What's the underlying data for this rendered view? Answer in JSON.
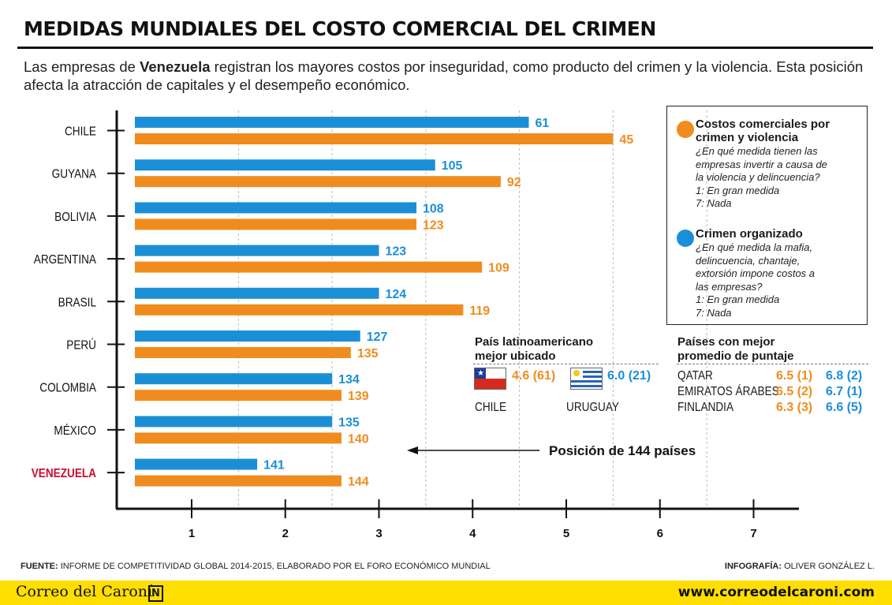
{
  "header": {
    "title": "MEDIDAS MUNDIALES DEL COSTO COMERCIAL DEL CRIMEN",
    "intro_pre": "Las empresas de ",
    "intro_bold": "Venezuela",
    "intro_post": " registran los mayores costos por inseguridad, como producto del crimen y la violencia. Esta posición afecta la atracción de capitales y el desempeño económico."
  },
  "colors": {
    "blue": "#1b8fd6",
    "orange": "#f08c1e",
    "highlight": "#c8102e"
  },
  "chart_data": {
    "type": "bar",
    "orientation": "horizontal",
    "categories": [
      "CHILE",
      "GUYANA",
      "BOLIVIA",
      "ARGENTINA",
      "BRASIL",
      "PERÚ",
      "COLOMBIA",
      "MÉXICO",
      "VENEZUELA"
    ],
    "highlight_category": "VENEZUELA",
    "series": [
      {
        "name": "Crimen organizado",
        "color": "#1b8fd6",
        "values": [
          4.6,
          3.6,
          3.4,
          3.0,
          3.0,
          2.8,
          2.5,
          2.5,
          1.7
        ],
        "labels": [
          "61",
          "105",
          "108",
          "123",
          "124",
          "127",
          "134",
          "135",
          "141"
        ]
      },
      {
        "name": "Costos comerciales por crimen y violencia",
        "color": "#f08c1e",
        "values": [
          5.5,
          4.3,
          3.4,
          4.1,
          3.9,
          2.7,
          2.6,
          2.6,
          2.6
        ],
        "labels": [
          "45",
          "92",
          "123",
          "109",
          "119",
          "135",
          "139",
          "140",
          "144"
        ]
      }
    ],
    "x_ticks": [
      "1",
      "2",
      "3",
      "4",
      "5",
      "6",
      "7"
    ],
    "xlim": [
      0.2,
      7.4
    ],
    "annotation": "Posición de 144 países"
  },
  "legend": {
    "orange_title": "Costos comerciales por crimen y violencia",
    "orange_desc": [
      "¿En qué medida tienen las",
      "empresas invertir a causa de",
      "la violencia y delincuencia?",
      "1: En gran medida",
      "7: Nada"
    ],
    "blue_title": "Crimen organizado",
    "blue_desc": [
      "¿En qué medida la mafia,",
      "delincuencia, chantaje,",
      "extorsión impone costos a",
      "las empresas?",
      "1: En gran medida",
      "7: Nada"
    ]
  },
  "best_latam": {
    "title_line1": "País latinoamericano",
    "title_line2": "mejor ubicado",
    "chile_value": "4.6 (61)",
    "chile_label": "CHILE",
    "uruguay_value": "6.0 (21)",
    "uruguay_label": "URUGUAY"
  },
  "best_world": {
    "title_line1": "Países con mejor",
    "title_line2": "promedio de puntaje",
    "rows": [
      {
        "country": "QATAR",
        "orange": "6.5 (1)",
        "blue": "6.8 (2)"
      },
      {
        "country": "EMIRATOS ÁRABES",
        "orange": "6.5 (2)",
        "blue": "6.7 (1)"
      },
      {
        "country": "FINLANDIA",
        "orange": "6.3 (3)",
        "blue": "6.6 (5)"
      }
    ]
  },
  "source": {
    "label": "FUENTE:",
    "text": " INFORME DE COMPETITIVIDAD GLOBAL 2014-2015, ELABORADO POR EL FORO ECONÓMICO MUNDIAL",
    "credit_label": "INFOGRAFÍA:",
    "credit_text": " OLIVER GONZÁLEZ L."
  },
  "footer": {
    "brand": "Correo del Caroní",
    "brand_icon": "N",
    "url": "www.correodelcaroni.com"
  }
}
